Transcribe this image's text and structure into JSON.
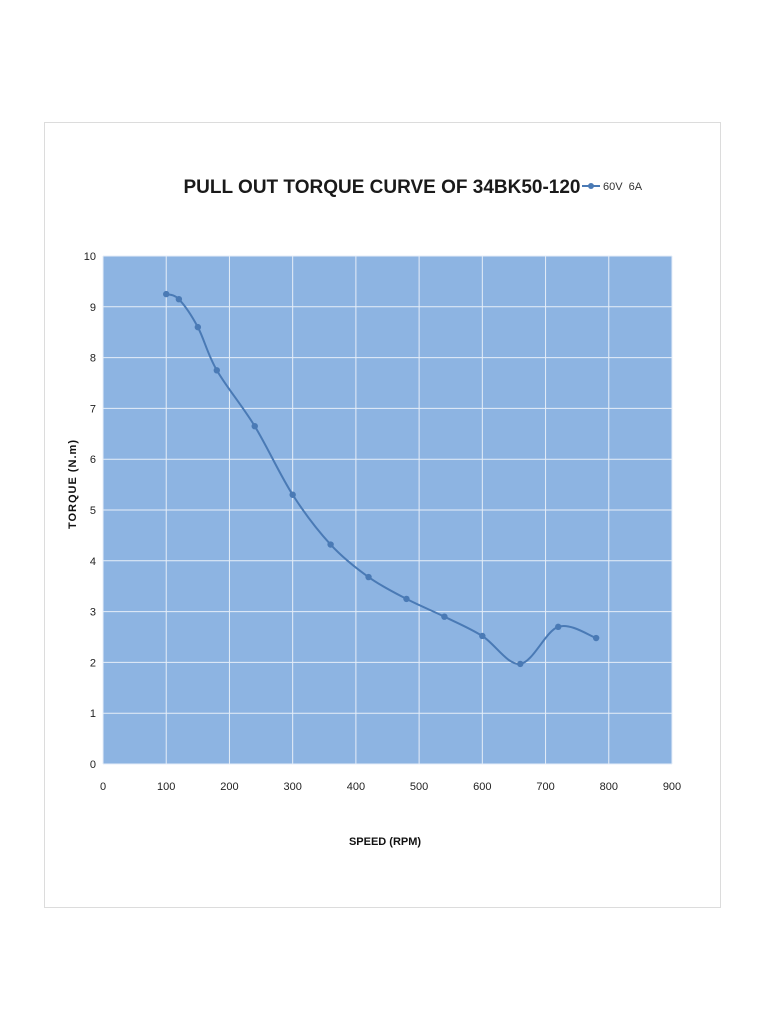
{
  "chart_data": {
    "type": "line",
    "title": "PULL OUT TORQUE CURVE OF 34BK50-120",
    "xlabel": "SPEED (RPM)",
    "ylabel": "TORQUE (N.m)",
    "xlim": [
      0,
      900
    ],
    "ylim": [
      0,
      10
    ],
    "x_ticks": [
      "0",
      "100",
      "200",
      "300",
      "400",
      "500",
      "600",
      "700",
      "800",
      "900"
    ],
    "y_ticks": [
      "0",
      "1",
      "2",
      "3",
      "4",
      "5",
      "6",
      "7",
      "8",
      "9",
      "10"
    ],
    "grid": true,
    "legend_position": "top-right",
    "plot_background": "#8db4e2",
    "series": [
      {
        "name": "60V  6A",
        "color": "#4a7ab5",
        "x": [
          100,
          120,
          150,
          180,
          240,
          300,
          360,
          420,
          480,
          540,
          600,
          660,
          720,
          780
        ],
        "y": [
          9.25,
          9.15,
          8.6,
          7.75,
          6.65,
          5.3,
          4.32,
          3.68,
          3.25,
          2.9,
          2.52,
          1.97,
          2.7,
          2.48
        ]
      }
    ]
  }
}
